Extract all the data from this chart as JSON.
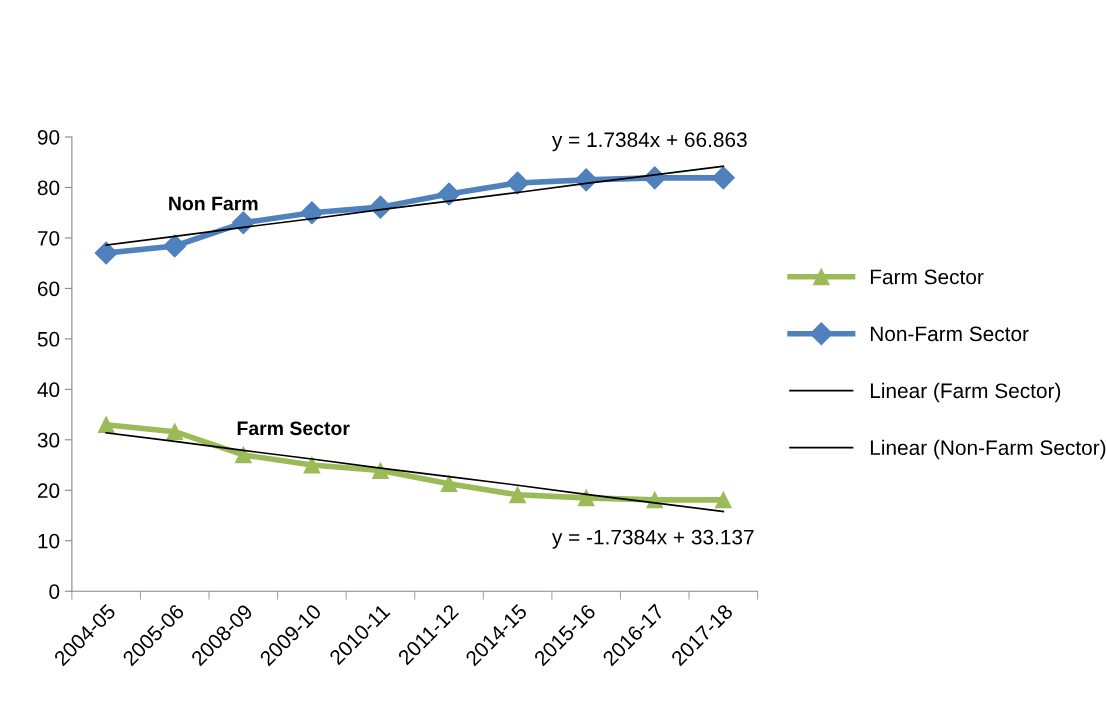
{
  "chart_data": {
    "type": "line",
    "categories": [
      "2004-05",
      "2005-06",
      "2008-09",
      "2009-10",
      "2010-11",
      "2011-12",
      "2014-15",
      "2015-16",
      "2016-17",
      "2017-18"
    ],
    "series": [
      {
        "name": "Farm Sector",
        "color": "#9bbb59",
        "marker": "triangle",
        "values": [
          33.0,
          31.6,
          27.0,
          25.0,
          23.9,
          21.3,
          19.1,
          18.5,
          18.1,
          18.1
        ]
      },
      {
        "name": "Non-Farm Sector",
        "color": "#4f81bd",
        "marker": "diamond",
        "values": [
          67.0,
          68.4,
          73.0,
          75.0,
          76.1,
          78.7,
          80.9,
          81.5,
          81.9,
          81.9
        ]
      },
      {
        "name": "Linear (Farm Sector)",
        "color": "#000000",
        "marker": "none",
        "values": [
          31.4,
          29.7,
          27.9,
          26.2,
          24.4,
          22.7,
          21.0,
          19.2,
          17.5,
          15.8
        ]
      },
      {
        "name": "Linear (Non-Farm Sector)",
        "color": "#000000",
        "marker": "none",
        "values": [
          68.6,
          70.3,
          72.1,
          73.8,
          75.6,
          77.3,
          79.0,
          80.8,
          82.5,
          84.2
        ]
      }
    ],
    "ylim": [
      0,
      90
    ],
    "yticks": [
      0,
      10,
      20,
      30,
      40,
      50,
      60,
      70,
      80,
      90
    ],
    "grid": false,
    "legend": "right",
    "annotations": [
      "Non Farm",
      "Farm Sector",
      "y = 1.7384x + 66.863",
      "y = -1.7384x + 33.137"
    ]
  }
}
